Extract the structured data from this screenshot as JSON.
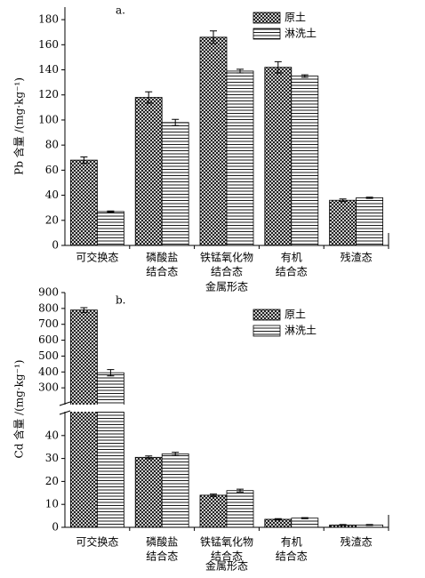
{
  "chart_data": [
    {
      "type": "bar",
      "annotation": "a.",
      "ylabel": "Pb 含量 /(mg·kg⁻¹)",
      "xlabel": "金属形态",
      "categories": [
        [
          "可交换态"
        ],
        [
          "磷酸盐",
          "结合态"
        ],
        [
          "铁锰氧化物",
          "结合态"
        ],
        [
          "有机",
          "结合态"
        ],
        [
          "残渣态"
        ]
      ],
      "series": [
        {
          "name": "原土",
          "color": "#000000",
          "pattern": "crosshatch",
          "values": [
            68,
            118,
            166,
            142,
            36
          ],
          "errors": [
            2.5,
            4.5,
            5,
            4.5,
            1
          ]
        },
        {
          "name": "淋洗土",
          "color": "#000000",
          "pattern": "hlines",
          "values": [
            27,
            98,
            139,
            135,
            38
          ],
          "errors": [
            0.5,
            2.5,
            1.5,
            1,
            0.5
          ]
        }
      ],
      "ylim": [
        0,
        190
      ],
      "yticks": [
        0,
        20,
        40,
        60,
        80,
        100,
        120,
        140,
        160,
        180
      ]
    },
    {
      "type": "bar",
      "annotation": "b.",
      "ylabel": "Cd 含量 /(mg·kg⁻¹)",
      "xlabel": "金属形态",
      "categories": [
        [
          "可交换态"
        ],
        [
          "磷酸盐",
          "结合态"
        ],
        [
          "铁锰氧化物",
          "结合态"
        ],
        [
          "有机",
          "结合态"
        ],
        [
          "残渣态"
        ]
      ],
      "series": [
        {
          "name": "原土",
          "color": "#000000",
          "pattern": "crosshatch",
          "values": [
            790,
            30.5,
            14,
            3.5,
            1
          ],
          "errors": [
            15,
            0.6,
            0.5,
            0.3,
            0.2
          ]
        },
        {
          "name": "淋洗土",
          "color": "#000000",
          "pattern": "hlines",
          "values": [
            395,
            32,
            16,
            4,
            1
          ],
          "errors": [
            20,
            0.7,
            0.6,
            0.2,
            0.2
          ]
        }
      ],
      "ylim": [
        0,
        900
      ],
      "ybreak": [
        50,
        200
      ],
      "yticks": [
        0,
        10,
        20,
        30,
        40,
        300,
        400,
        500,
        600,
        700,
        800,
        900
      ]
    }
  ]
}
